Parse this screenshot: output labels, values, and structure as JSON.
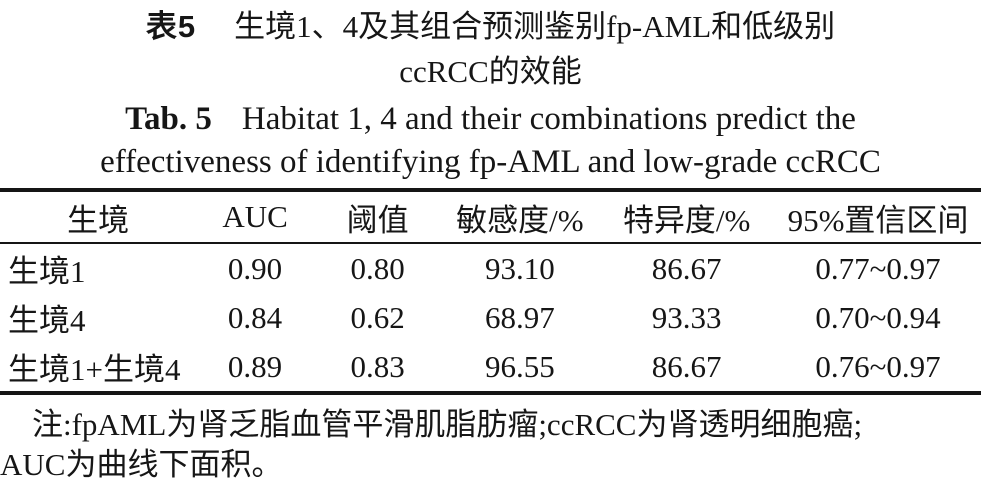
{
  "caption": {
    "zh": {
      "label": "表5",
      "line1": "生境1、4及其组合预测鉴别fp-AML和低级别",
      "line2": "ccRCC的效能"
    },
    "en": {
      "label": "Tab. 5",
      "line1": "Habitat 1, 4 and their combinations predict the",
      "line2": "effectiveness of identifying fp-AML and low-grade ccRCC"
    }
  },
  "table": {
    "columns": [
      "生境",
      "AUC",
      "阈值",
      "敏感度/%",
      "特异度/%",
      "95%置信区间"
    ],
    "rows": [
      [
        "生境1",
        "0.90",
        "0.80",
        "93.10",
        "86.67",
        "0.77~0.97"
      ],
      [
        "生境4",
        "0.84",
        "0.62",
        "68.97",
        "93.33",
        "0.70~0.94"
      ],
      [
        "生境1+生境4",
        "0.89",
        "0.83",
        "96.55",
        "86.67",
        "0.76~0.97"
      ]
    ]
  },
  "note": {
    "line1": "注:fpAML为肾乏脂血管平滑肌脂肪瘤;ccRCC为肾透明细胞癌;",
    "line2": "AUC为曲线下面积。"
  },
  "colors": {
    "text": "#161616",
    "rule": "#151515",
    "background": "#ffffff"
  }
}
